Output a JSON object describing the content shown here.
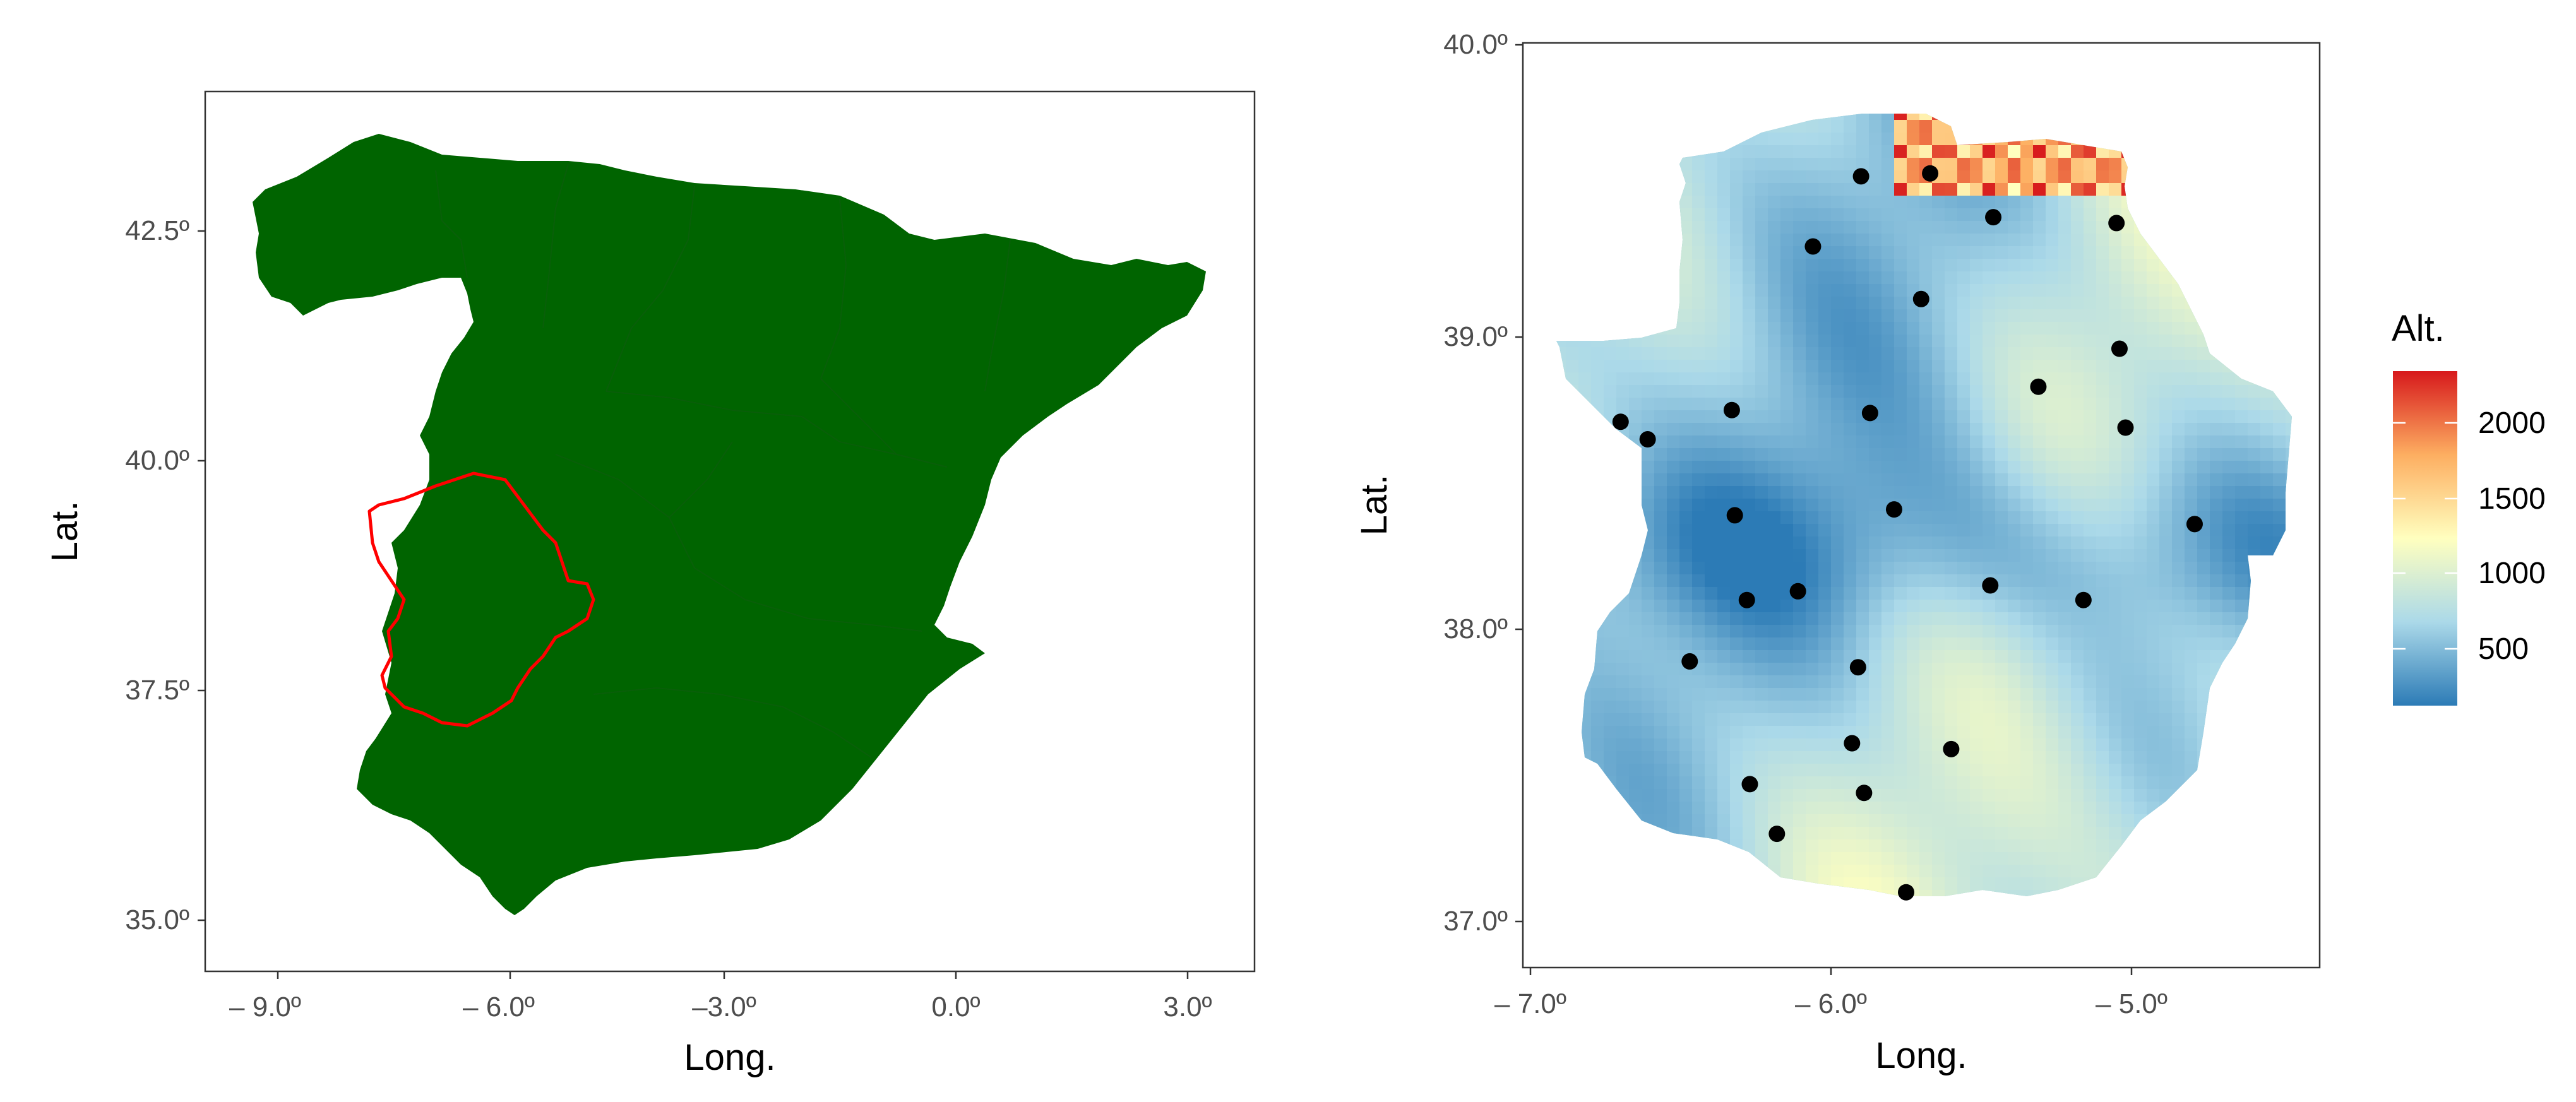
{
  "left_panel": {
    "xlabel": "Long.",
    "ylabel": "Lat.",
    "xticks": [
      "– 9.0º",
      "– 6.0º",
      "–3.0º",
      "0.0º",
      "3.0º"
    ],
    "yticks": [
      "35.0º",
      "37.5º",
      "40.0º",
      "42.5º"
    ],
    "land_color": "#006400",
    "highlight_color": "#ff0000"
  },
  "right_panel": {
    "xlabel": "Long.",
    "ylabel": "Lat.",
    "xticks": [
      "– 7.0º",
      "– 6.0º",
      "– 5.0º"
    ],
    "yticks": [
      "37.0º",
      "38.0º",
      "39.0º",
      "40.0º"
    ]
  },
  "legend": {
    "title": "Alt.",
    "labels": [
      "2000",
      "1500",
      "1000",
      "500"
    ]
  },
  "chart_data": {
    "type": "scatter",
    "xlim": [
      -7.02,
      -4.33
    ],
    "ylim": [
      36.85,
      40.0
    ],
    "elevation_range": [
      200,
      2400
    ],
    "colorscale": [
      "#2c7bb6",
      "#abd9e9",
      "#ffffbf",
      "#fdae61",
      "#d7191c"
    ],
    "stations": [
      {
        "x": -5.9,
        "y": 39.55
      },
      {
        "x": -5.67,
        "y": 39.56
      },
      {
        "x": -5.46,
        "y": 39.41
      },
      {
        "x": -5.05,
        "y": 39.39
      },
      {
        "x": -6.06,
        "y": 39.31
      },
      {
        "x": -5.7,
        "y": 39.13
      },
      {
        "x": -5.04,
        "y": 38.96
      },
      {
        "x": -5.31,
        "y": 38.83
      },
      {
        "x": -6.33,
        "y": 38.75
      },
      {
        "x": -5.87,
        "y": 38.74
      },
      {
        "x": -6.7,
        "y": 38.71
      },
      {
        "x": -6.61,
        "y": 38.65
      },
      {
        "x": -5.02,
        "y": 38.69
      },
      {
        "x": -6.32,
        "y": 38.39
      },
      {
        "x": -5.79,
        "y": 38.41
      },
      {
        "x": -4.79,
        "y": 38.36
      },
      {
        "x": -6.11,
        "y": 38.13
      },
      {
        "x": -6.28,
        "y": 38.1
      },
      {
        "x": -5.47,
        "y": 38.15
      },
      {
        "x": -5.16,
        "y": 38.1
      },
      {
        "x": -6.47,
        "y": 37.89
      },
      {
        "x": -5.91,
        "y": 37.87
      },
      {
        "x": -5.93,
        "y": 37.61
      },
      {
        "x": -5.6,
        "y": 37.59
      },
      {
        "x": -6.27,
        "y": 37.47
      },
      {
        "x": -5.89,
        "y": 37.44
      },
      {
        "x": -6.18,
        "y": 37.3
      },
      {
        "x": -5.75,
        "y": 37.1
      }
    ]
  }
}
